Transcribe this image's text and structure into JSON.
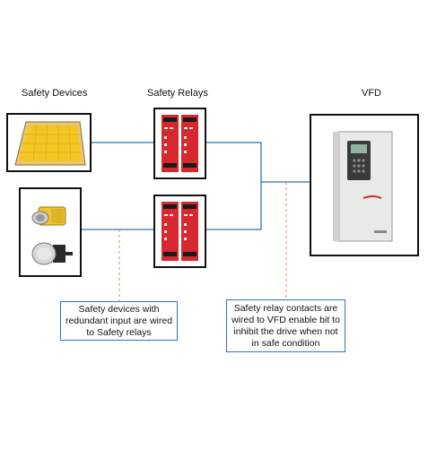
{
  "headings": {
    "safety_devices": "Safety Devices",
    "safety_relays": "Safety Relays",
    "vfd": "VFD"
  },
  "callouts": {
    "devices_note": "Safety devices with redundant input are wired to Safety relays",
    "relay_note": "Safety relay contacts are wired to VFD enable bit to inhibit the drive when not in safe condition"
  },
  "colors": {
    "wire": "#2e75b6",
    "dashed_leader": "#d98c5f",
    "relay_red": "#d7282f",
    "mat_yellow": "#f3c623",
    "drive_body": "#e9e9e9"
  }
}
